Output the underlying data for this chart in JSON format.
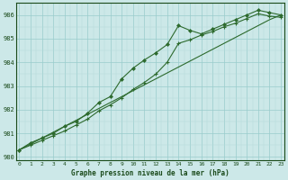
{
  "x": [
    0,
    1,
    2,
    3,
    4,
    5,
    6,
    7,
    8,
    9,
    10,
    11,
    12,
    13,
    14,
    15,
    16,
    17,
    18,
    19,
    20,
    21,
    22,
    23
  ],
  "line_straight": [
    980.3,
    980.55,
    980.8,
    981.05,
    981.3,
    981.55,
    981.8,
    982.05,
    982.3,
    982.55,
    982.8,
    983.05,
    983.3,
    983.55,
    983.8,
    984.05,
    984.3,
    984.55,
    984.8,
    985.05,
    985.3,
    985.55,
    985.8,
    986.0
  ],
  "line_upper": [
    980.3,
    980.6,
    980.8,
    981.0,
    981.3,
    981.5,
    981.85,
    982.3,
    982.55,
    983.3,
    983.75,
    984.1,
    984.4,
    984.75,
    985.55,
    985.35,
    985.2,
    985.4,
    985.6,
    985.8,
    986.0,
    986.2,
    986.1,
    986.0
  ],
  "line_lower": [
    980.3,
    980.5,
    980.7,
    980.9,
    981.1,
    981.35,
    981.6,
    981.95,
    982.2,
    982.5,
    982.85,
    983.15,
    983.5,
    984.0,
    984.8,
    984.95,
    985.15,
    985.3,
    985.5,
    985.65,
    985.85,
    986.05,
    985.95,
    985.9
  ],
  "line_color": "#2d6a2d",
  "marker_color": "#2d6a2d",
  "bg_color": "#cce8e8",
  "grid_major_color": "#99cccc",
  "grid_minor_color": "#b3d9d9",
  "text_color": "#1a4a1a",
  "xlabel": "Graphe pression niveau de la mer (hPa)",
  "ylim": [
    979.85,
    986.5
  ],
  "yticks": [
    980,
    981,
    982,
    983,
    984,
    985,
    986
  ],
  "xticks": [
    0,
    1,
    2,
    3,
    4,
    5,
    6,
    7,
    8,
    9,
    10,
    11,
    12,
    13,
    14,
    15,
    16,
    17,
    18,
    19,
    20,
    21,
    22,
    23
  ],
  "figsize": [
    3.2,
    2.0
  ],
  "dpi": 100
}
